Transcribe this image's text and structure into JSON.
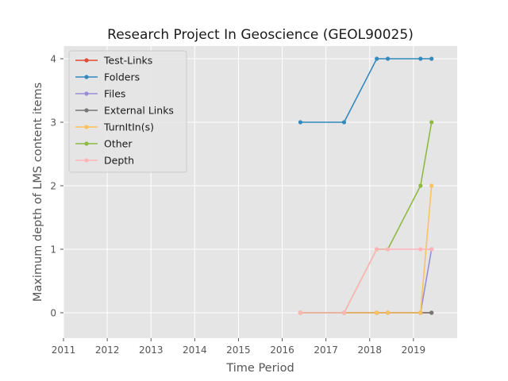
{
  "chart_data": {
    "type": "line",
    "title": "Research Project In Geoscience (GEOL90025)",
    "xlabel": "Time Period",
    "ylabel": "Maximum depth of LMS content items",
    "xlim": [
      2011,
      2020
    ],
    "ylim": [
      -0.4,
      4.2
    ],
    "xticks": [
      "2011",
      "2012",
      "2013",
      "2014",
      "2015",
      "2016",
      "2017",
      "2018",
      "2019"
    ],
    "yticks": [
      "0",
      "1",
      "2",
      "3",
      "4"
    ],
    "grid": true,
    "legend_position": "upper-left",
    "x": [
      "2016-06-01",
      "2017-06-01",
      "2018-03-01",
      "2018-06-01",
      "2019-03-01",
      "2019-06-01"
    ],
    "series": [
      {
        "name": "Test-Links",
        "color": "#e24a33",
        "values": [
          0,
          0,
          0,
          0,
          0,
          0
        ]
      },
      {
        "name": "Folders",
        "color": "#348abd",
        "values": [
          3,
          3,
          4,
          4,
          4,
          4
        ]
      },
      {
        "name": "Files",
        "color": "#988ed5",
        "values": [
          0,
          0,
          0,
          0,
          0,
          1
        ]
      },
      {
        "name": "External Links",
        "color": "#777777",
        "values": [
          0,
          0,
          0,
          0,
          0,
          0
        ]
      },
      {
        "name": "TurnItIn(s)",
        "color": "#fbc15e",
        "values": [
          0,
          0,
          0,
          0,
          0,
          2
        ]
      },
      {
        "name": "Other",
        "color": "#8eba42",
        "values": [
          0,
          0,
          1,
          1,
          2,
          3
        ]
      },
      {
        "name": "Depth",
        "color": "#ffb5b8",
        "values": [
          0,
          0,
          1,
          1,
          1,
          1
        ]
      }
    ]
  }
}
